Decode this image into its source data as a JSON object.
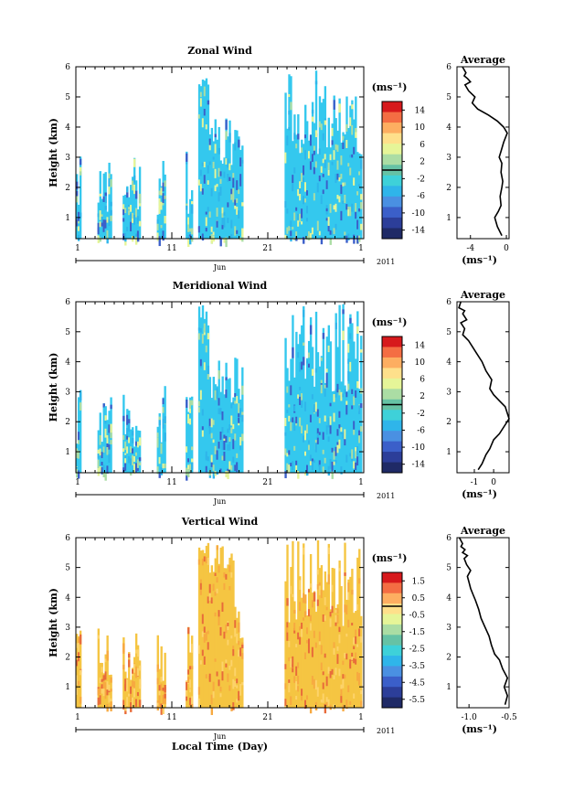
{
  "chart_data": [
    {
      "type": "heatmap",
      "title": "Zonal Wind",
      "ylabel": "Height (km)",
      "xticks": [
        "1",
        "11",
        "21",
        "1"
      ],
      "month_label": "Jun",
      "year_label": "2011",
      "yticks": [
        "1",
        "2",
        "3",
        "4",
        "5",
        "6"
      ],
      "ylim": [
        0.3,
        6.0
      ],
      "colorbar": {
        "unit": "(ms⁻¹)",
        "ticks": [
          "14",
          "10",
          "6",
          "2",
          "-2",
          "-6",
          "-10",
          "-14"
        ],
        "range": [
          -16,
          16
        ]
      },
      "fill_color": "#34c8ee",
      "average": {
        "title": "Average",
        "xlabel": "(ms⁻¹)",
        "xticks": [
          "-4",
          "0"
        ],
        "xlim": [
          -5.5,
          0.3
        ],
        "profile_x": [
          -0.5,
          -1.0,
          -1.3,
          -0.9,
          -0.6,
          -0.7,
          -0.5,
          -0.4,
          -0.6,
          -0.5,
          -0.8,
          -0.6,
          -0.3,
          0.1,
          -0.3,
          -1.0,
          -2.0,
          -3.2,
          -3.8,
          -3.5,
          -4.2,
          -4.6,
          -4.0,
          -4.3,
          -4.7,
          -4.5,
          -4.9
        ],
        "profile_y": [
          0.4,
          0.7,
          1.0,
          1.2,
          1.4,
          1.7,
          2.0,
          2.2,
          2.5,
          2.8,
          3.0,
          3.2,
          3.5,
          3.8,
          4.0,
          4.2,
          4.4,
          4.6,
          4.8,
          5.0,
          5.2,
          5.4,
          5.5,
          5.6,
          5.7,
          5.8,
          6.0
        ]
      }
    },
    {
      "type": "heatmap",
      "title": "Meridional Wind",
      "ylabel": "Height (km)",
      "xticks": [
        "1",
        "11",
        "21",
        "1"
      ],
      "month_label": "Jun",
      "year_label": "2011",
      "yticks": [
        "1",
        "2",
        "3",
        "4",
        "5",
        "6"
      ],
      "ylim": [
        0.3,
        6.0
      ],
      "colorbar": {
        "unit": "(ms⁻¹)",
        "ticks": [
          "14",
          "10",
          "6",
          "2",
          "-2",
          "-6",
          "-10",
          "-14"
        ],
        "range": [
          -16,
          16
        ]
      },
      "fill_color": "#34c8ee",
      "average": {
        "title": "Average",
        "xlabel": "(ms⁻¹)",
        "xticks": [
          "-1",
          "0"
        ],
        "xlim": [
          -1.9,
          0.8
        ],
        "profile_x": [
          -0.8,
          -0.6,
          -0.4,
          -0.2,
          0.0,
          0.3,
          0.6,
          0.8,
          0.7,
          0.6,
          0.3,
          0.0,
          -0.2,
          -0.1,
          -0.4,
          -0.6,
          -0.9,
          -1.1,
          -1.3,
          -1.6,
          -1.5,
          -1.7,
          -1.4,
          -1.6,
          -1.5,
          -1.8,
          -1.7
        ],
        "profile_y": [
          0.4,
          0.6,
          0.9,
          1.1,
          1.4,
          1.6,
          1.9,
          2.1,
          2.3,
          2.5,
          2.7,
          2.9,
          3.1,
          3.4,
          3.7,
          4.0,
          4.3,
          4.5,
          4.7,
          4.9,
          5.1,
          5.3,
          5.4,
          5.6,
          5.7,
          5.8,
          6.0
        ]
      }
    },
    {
      "type": "heatmap",
      "title": "Vertical Wind",
      "ylabel": "Height (km)",
      "xlabel": "Local Time (Day)",
      "xticks": [
        "1",
        "11",
        "21",
        "1"
      ],
      "month_label": "Jun",
      "year_label": "2011",
      "yticks": [
        "1",
        "2",
        "3",
        "4",
        "5",
        "6"
      ],
      "ylim": [
        0.3,
        6.0
      ],
      "colorbar": {
        "unit": "(ms⁻¹)",
        "ticks": [
          "1.5",
          "0.5",
          "-0.5",
          "-1.5",
          "-2.5",
          "-3.5",
          "-4.5",
          "-5.5"
        ],
        "range": [
          -6.0,
          2.0
        ]
      },
      "fill_color": "#f5c542",
      "average": {
        "title": "Average",
        "xlabel": "(ms⁻¹)",
        "xticks": [
          "-1.0",
          "-0.5"
        ],
        "xlim": [
          -1.15,
          -0.5
        ],
        "profile_x": [
          -0.55,
          -0.52,
          -0.56,
          -0.52,
          -0.58,
          -0.62,
          -0.68,
          -0.72,
          -0.75,
          -0.8,
          -0.85,
          -0.88,
          -0.92,
          -0.95,
          -0.98,
          -1.0,
          -1.02,
          -0.98,
          -1.03,
          -1.06,
          -1.02,
          -1.08,
          -1.05,
          -1.1,
          -1.08,
          -1.12
        ],
        "profile_y": [
          0.4,
          0.7,
          1.0,
          1.3,
          1.6,
          1.9,
          2.1,
          2.4,
          2.7,
          3.0,
          3.3,
          3.6,
          3.9,
          4.1,
          4.3,
          4.5,
          4.7,
          4.9,
          5.1,
          5.3,
          5.4,
          5.5,
          5.6,
          5.7,
          5.8,
          6.0
        ]
      }
    }
  ],
  "colors": {
    "colorbar": [
      "#d7191c",
      "#f46d43",
      "#fdae61",
      "#fee08b",
      "#e6f598",
      "#abdda4",
      "#66c2a5",
      "#3ed1d9",
      "#2fb5ea",
      "#4a90e2",
      "#3b5fc9",
      "#2c3e99",
      "#1f2a66"
    ]
  }
}
